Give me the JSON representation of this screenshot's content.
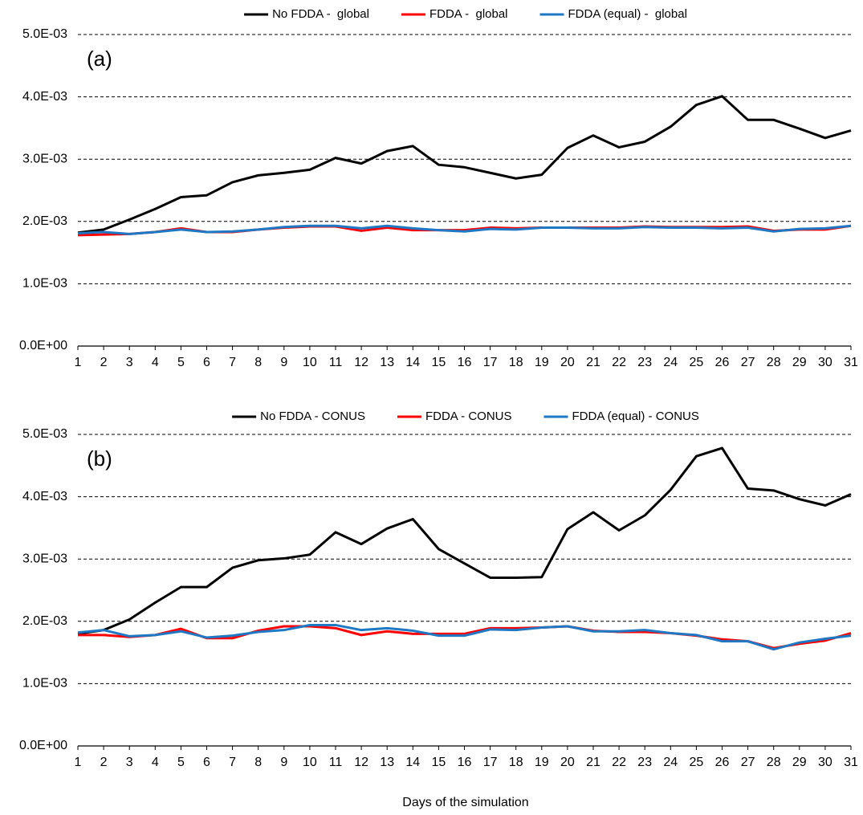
{
  "chart_data": [
    {
      "type": "line",
      "annotation": "(a)",
      "x": [
        1,
        2,
        3,
        4,
        5,
        6,
        7,
        8,
        9,
        10,
        11,
        12,
        13,
        14,
        15,
        16,
        17,
        18,
        19,
        20,
        21,
        22,
        23,
        24,
        25,
        26,
        27,
        28,
        29,
        30,
        31
      ],
      "xlim": [
        1,
        31
      ],
      "xticks": [
        1,
        2,
        3,
        4,
        5,
        6,
        7,
        8,
        9,
        10,
        11,
        12,
        13,
        14,
        15,
        16,
        17,
        18,
        19,
        20,
        21,
        22,
        23,
        24,
        25,
        26,
        27,
        28,
        29,
        30,
        31
      ],
      "ylim": [
        0,
        0.005
      ],
      "yticks": [
        {
          "value": 0,
          "label": "0.0E+00"
        },
        {
          "value": 0.001,
          "label": "1.0E-03"
        },
        {
          "value": 0.002,
          "label": "2.0E-03"
        },
        {
          "value": 0.003,
          "label": "3.0E-03"
        },
        {
          "value": 0.004,
          "label": "4.0E-03"
        },
        {
          "value": 0.005,
          "label": "5.0E-03"
        }
      ],
      "grid": true,
      "legend": "top",
      "series": [
        {
          "name": "No FDDA -  global",
          "color": "#000000",
          "values": [
            0.00182,
            0.00187,
            0.00203,
            0.0022,
            0.00239,
            0.00242,
            0.00263,
            0.00274,
            0.00278,
            0.00283,
            0.00302,
            0.00293,
            0.00313,
            0.00321,
            0.00291,
            0.00287,
            0.00278,
            0.00269,
            0.00275,
            0.00318,
            0.00338,
            0.00319,
            0.00328,
            0.00352,
            0.00387,
            0.00401,
            0.00363,
            0.00363,
            0.00349,
            0.00334,
            0.00346
          ]
        },
        {
          "name": "FDDA -  global",
          "color": "#ff0000",
          "values": [
            0.00178,
            0.00179,
            0.0018,
            0.00183,
            0.00189,
            0.00183,
            0.00183,
            0.00187,
            0.0019,
            0.00192,
            0.00192,
            0.00185,
            0.0019,
            0.00186,
            0.00186,
            0.00186,
            0.0019,
            0.00189,
            0.0019,
            0.0019,
            0.0019,
            0.0019,
            0.00192,
            0.00191,
            0.00191,
            0.00191,
            0.00192,
            0.00185,
            0.00187,
            0.00187,
            0.00193
          ]
        },
        {
          "name": "FDDA (equal) -  global",
          "color": "#1f78c4",
          "values": [
            0.00181,
            0.00183,
            0.0018,
            0.00183,
            0.00187,
            0.00183,
            0.00184,
            0.00187,
            0.00191,
            0.00193,
            0.00193,
            0.00189,
            0.00193,
            0.00189,
            0.00186,
            0.00184,
            0.00188,
            0.00187,
            0.0019,
            0.0019,
            0.00189,
            0.00189,
            0.00191,
            0.0019,
            0.0019,
            0.00189,
            0.0019,
            0.00184,
            0.00188,
            0.00189,
            0.00193
          ]
        }
      ]
    },
    {
      "type": "line",
      "annotation": "(b)",
      "xlabel": "Days of the simulation",
      "x": [
        1,
        2,
        3,
        4,
        5,
        6,
        7,
        8,
        9,
        10,
        11,
        12,
        13,
        14,
        15,
        16,
        17,
        18,
        19,
        20,
        21,
        22,
        23,
        24,
        25,
        26,
        27,
        28,
        29,
        30,
        31
      ],
      "xlim": [
        1,
        31
      ],
      "xticks": [
        1,
        2,
        3,
        4,
        5,
        6,
        7,
        8,
        9,
        10,
        11,
        12,
        13,
        14,
        15,
        16,
        17,
        18,
        19,
        20,
        21,
        22,
        23,
        24,
        25,
        26,
        27,
        28,
        29,
        30,
        31
      ],
      "ylim": [
        0,
        0.005
      ],
      "yticks": [
        {
          "value": 0,
          "label": "0.0E+00"
        },
        {
          "value": 0.001,
          "label": "1.0E-03"
        },
        {
          "value": 0.002,
          "label": "2.0E-03"
        },
        {
          "value": 0.003,
          "label": "3.0E-03"
        },
        {
          "value": 0.004,
          "label": "4.0E-03"
        },
        {
          "value": 0.005,
          "label": "5.0E-03"
        }
      ],
      "grid": true,
      "legend": "top",
      "series": [
        {
          "name": "No FDDA - CONUS",
          "color": "#000000",
          "values": [
            0.0018,
            0.00186,
            0.00203,
            0.0023,
            0.00255,
            0.00255,
            0.00286,
            0.00298,
            0.00301,
            0.00307,
            0.00343,
            0.00324,
            0.00349,
            0.00364,
            0.00316,
            0.00293,
            0.0027,
            0.0027,
            0.00271,
            0.00348,
            0.00375,
            0.00346,
            0.0037,
            0.00411,
            0.00465,
            0.00478,
            0.00413,
            0.0041,
            0.00396,
            0.00386,
            0.00404
          ]
        },
        {
          "name": "FDDA - CONUS",
          "color": "#ff0000",
          "values": [
            0.00178,
            0.00178,
            0.00175,
            0.00178,
            0.00188,
            0.00173,
            0.00173,
            0.00185,
            0.00192,
            0.00192,
            0.00189,
            0.00178,
            0.00184,
            0.0018,
            0.0018,
            0.0018,
            0.00189,
            0.00189,
            0.0019,
            0.00192,
            0.00185,
            0.00183,
            0.00183,
            0.00181,
            0.00177,
            0.00171,
            0.00168,
            0.00157,
            0.00164,
            0.00169,
            0.00181
          ]
        },
        {
          "name": "FDDA (equal) - CONUS",
          "color": "#1f78c4",
          "values": [
            0.00182,
            0.00186,
            0.00176,
            0.00178,
            0.00184,
            0.00174,
            0.00177,
            0.00183,
            0.00186,
            0.00194,
            0.00194,
            0.00186,
            0.00189,
            0.00185,
            0.00177,
            0.00177,
            0.00187,
            0.00186,
            0.0019,
            0.00192,
            0.00184,
            0.00184,
            0.00186,
            0.00181,
            0.00178,
            0.00168,
            0.00168,
            0.00155,
            0.00166,
            0.00172,
            0.00177
          ]
        }
      ]
    }
  ]
}
